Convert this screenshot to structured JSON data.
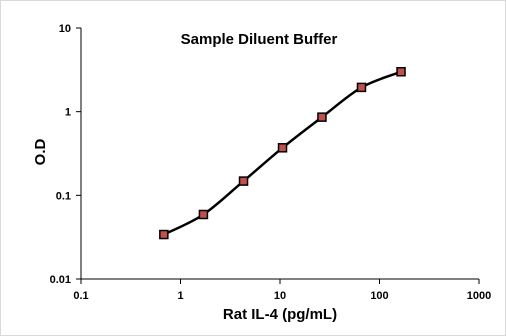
{
  "chart_data": {
    "type": "line",
    "title": "Sample Diluent Buffer",
    "xlabel": "Rat IL-4 (pg/mL)",
    "ylabel": "O.D",
    "x_scale": "log",
    "y_scale": "log",
    "xlim": [
      0.1,
      1000
    ],
    "ylim": [
      0.01,
      10
    ],
    "x_ticks": [
      "0.1",
      "1",
      "10",
      "100",
      "1000"
    ],
    "y_ticks": [
      "0.01",
      "0.1",
      "1",
      "10"
    ],
    "grid": false,
    "legend": "none",
    "series": [
      {
        "x": [
          0.68,
          1.7,
          4.3,
          10.6,
          26.4,
          65.9,
          164.6
        ],
        "y": [
          0.034,
          0.059,
          0.148,
          0.37,
          0.86,
          1.95,
          3.0
        ],
        "line_color": "#000000",
        "marker_color": "#c0504d",
        "marker": "square"
      }
    ]
  }
}
